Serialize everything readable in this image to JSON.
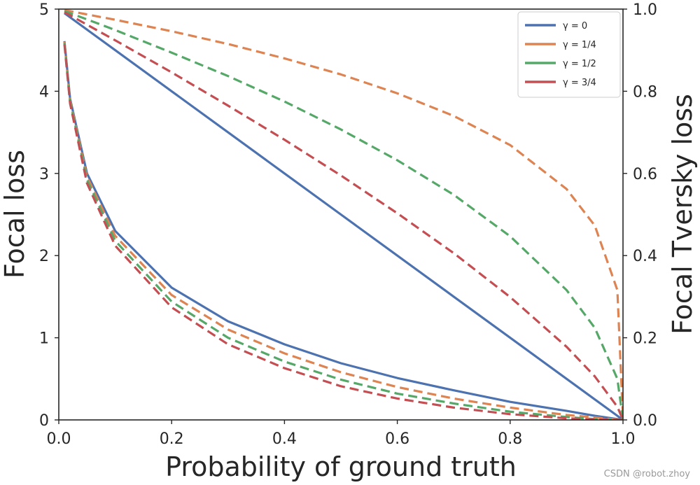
{
  "chart_data": {
    "type": "line",
    "xlabel": "Probability of ground truth",
    "ylabel_left": "Focal loss",
    "ylabel_right": "Focal Tversky loss",
    "xlim": [
      0,
      1
    ],
    "ylim_left": [
      0,
      5
    ],
    "ylim_right": [
      0,
      1
    ],
    "x_ticks": [
      "0.0",
      "0.2",
      "0.4",
      "0.6",
      "0.8",
      "1.0"
    ],
    "y_ticks_left": [
      "0",
      "1",
      "2",
      "3",
      "4",
      "5"
    ],
    "y_ticks_right": [
      "0.0",
      "0.2",
      "0.4",
      "0.6",
      "0.8",
      "1.0"
    ],
    "grid": false,
    "legend_position": "top-right",
    "x": [
      0.01,
      0.02,
      0.05,
      0.1,
      0.2,
      0.3,
      0.4,
      0.5,
      0.6,
      0.7,
      0.8,
      0.9,
      0.95,
      0.99,
      1.0
    ],
    "series": [
      {
        "name": "γ = 0",
        "color": "#4c72b0",
        "dash": "solid",
        "focal_loss": [
          4.61,
          3.91,
          3.0,
          2.3,
          1.61,
          1.2,
          0.92,
          0.69,
          0.51,
          0.36,
          0.22,
          0.11,
          0.05,
          0.01,
          0.0
        ],
        "focal_tversky_loss": [
          0.99,
          0.98,
          0.95,
          0.9,
          0.8,
          0.7,
          0.6,
          0.5,
          0.4,
          0.3,
          0.2,
          0.1,
          0.05,
          0.01,
          0.0
        ]
      },
      {
        "name": "γ = 1/4",
        "color": "#dd8452",
        "dash": "dashed",
        "focal_loss": [
          4.6,
          3.89,
          2.96,
          2.24,
          1.52,
          1.1,
          0.81,
          0.58,
          0.4,
          0.26,
          0.15,
          0.06,
          0.03,
          0.003,
          0.0
        ],
        "focal_tversky_loss": [
          0.997,
          0.995,
          0.987,
          0.974,
          0.946,
          0.915,
          0.88,
          0.841,
          0.795,
          0.74,
          0.669,
          0.562,
          0.473,
          0.316,
          0.0
        ]
      },
      {
        "name": "γ = 1/2",
        "color": "#55a868",
        "dash": "dashed",
        "focal_loss": [
          4.59,
          3.87,
          2.92,
          2.18,
          1.44,
          1.0,
          0.71,
          0.49,
          0.32,
          0.2,
          0.1,
          0.035,
          0.01,
          0.001,
          0.0
        ],
        "focal_tversky_loss": [
          0.995,
          0.99,
          0.975,
          0.949,
          0.894,
          0.837,
          0.775,
          0.707,
          0.632,
          0.548,
          0.447,
          0.316,
          0.224,
          0.1,
          0.0
        ]
      },
      {
        "name": "γ = 3/4",
        "color": "#c44e52",
        "dash": "dashed",
        "focal_loss": [
          4.57,
          3.85,
          2.88,
          2.12,
          1.37,
          0.92,
          0.63,
          0.41,
          0.26,
          0.15,
          0.07,
          0.02,
          0.006,
          0.0003,
          0.0
        ],
        "focal_tversky_loss": [
          0.992,
          0.985,
          0.962,
          0.924,
          0.846,
          0.765,
          0.682,
          0.595,
          0.503,
          0.406,
          0.299,
          0.178,
          0.106,
          0.032,
          0.0
        ]
      }
    ]
  },
  "watermark": "CSDN @robot.zhoy"
}
